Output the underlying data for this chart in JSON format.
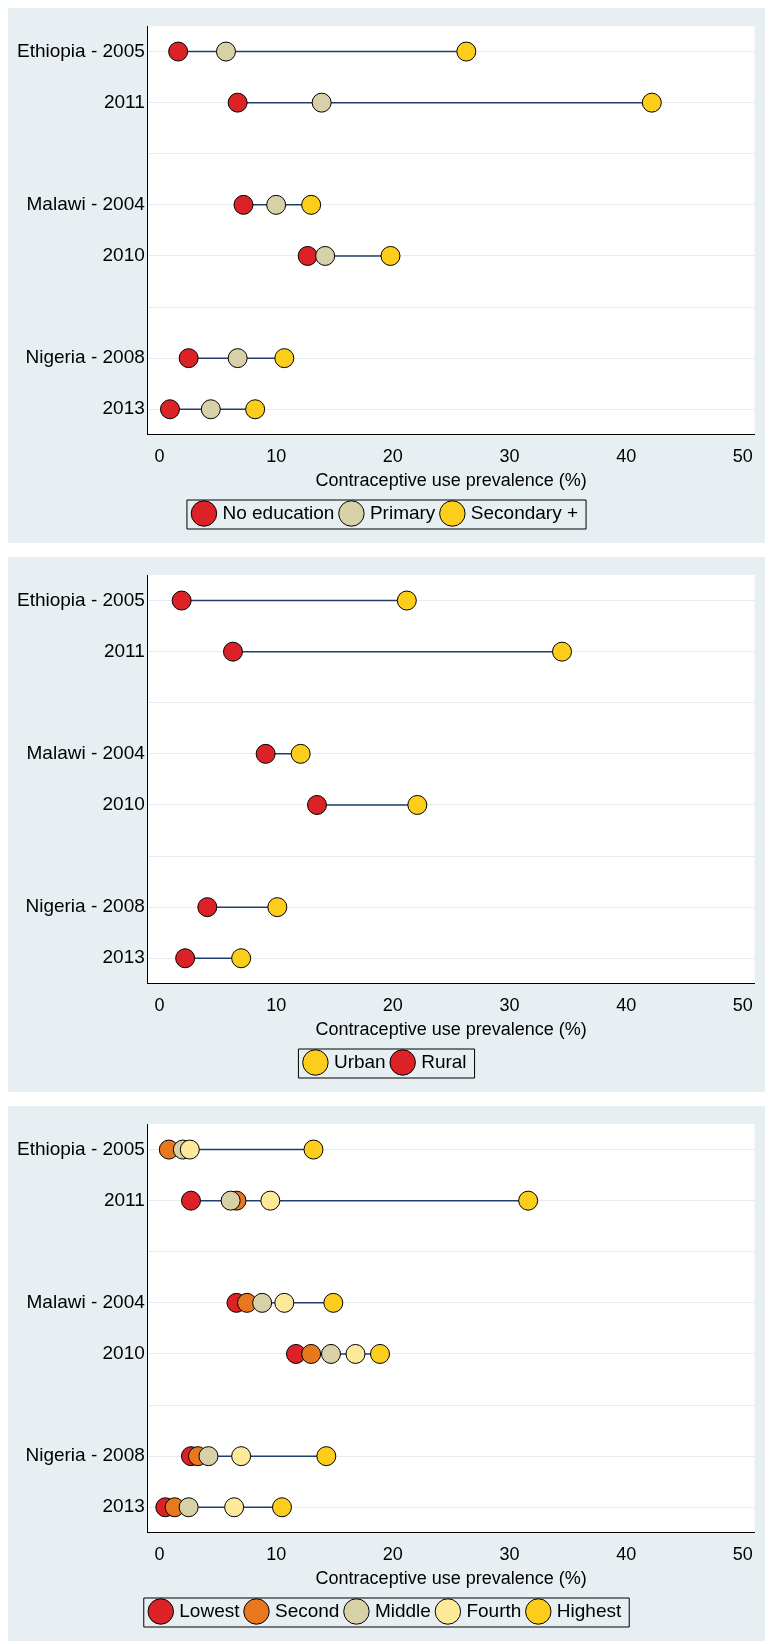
{
  "chart_data": [
    {
      "type": "scatter",
      "orientation": "horizontal",
      "categories": [
        "Ethiopia - 2005",
        "2011",
        null,
        "Malawi - 2004",
        "2010",
        null,
        "Nigeria - 2008",
        "2013"
      ],
      "xlabel": "Contraceptive use prevalence (%)",
      "xlim": [
        -1,
        51
      ],
      "xticks": [
        0,
        10,
        20,
        30,
        40,
        50
      ],
      "grid": "y",
      "legend": "bottom",
      "marker": "circle",
      "series": [
        {
          "name": "No education",
          "color": "#dc2127",
          "values": [
            1.6,
            6.7,
            null,
            7.2,
            12.7,
            null,
            2.5,
            0.9
          ]
        },
        {
          "name": "Primary",
          "color": "#d8d0a6",
          "values": [
            5.7,
            13.9,
            null,
            10.0,
            14.2,
            null,
            6.7,
            4.4
          ]
        },
        {
          "name": "Secondary +",
          "color": "#fdcd1b",
          "values": [
            26.3,
            42.2,
            null,
            13.0,
            19.8,
            null,
            10.7,
            8.2
          ]
        }
      ]
    },
    {
      "type": "scatter",
      "orientation": "horizontal",
      "categories": [
        "Ethiopia - 2005",
        "2011",
        null,
        "Malawi - 2004",
        "2010",
        null,
        "Nigeria - 2008",
        "2013"
      ],
      "xlabel": "Contraceptive use prevalence (%)",
      "xlim": [
        -1,
        51
      ],
      "xticks": [
        0,
        10,
        20,
        30,
        40,
        50
      ],
      "grid": "y",
      "legend": "bottom",
      "marker": "circle",
      "series": [
        {
          "name": "Urban",
          "color": "#fdcd1b",
          "values": [
            21.2,
            34.5,
            null,
            12.1,
            22.1,
            null,
            10.1,
            7.0
          ]
        },
        {
          "name": "Rural",
          "color": "#dc2127",
          "values": [
            1.9,
            6.3,
            null,
            9.1,
            13.5,
            null,
            4.1,
            2.2
          ]
        }
      ]
    },
    {
      "type": "scatter",
      "orientation": "horizontal",
      "categories": [
        "Ethiopia - 2005",
        "2011",
        null,
        "Malawi - 2004",
        "2010",
        null,
        "Nigeria - 2008",
        "2013"
      ],
      "xlabel": "Contraceptive use prevalence (%)",
      "xlim": [
        -1,
        51
      ],
      "xticks": [
        0,
        10,
        20,
        30,
        40,
        50
      ],
      "grid": "y",
      "legend": "bottom",
      "marker": "circle",
      "series": [
        {
          "name": "Lowest",
          "color": "#dc2127",
          "values": [
            null,
            2.7,
            null,
            6.6,
            11.7,
            null,
            2.7,
            0.5
          ]
        },
        {
          "name": "Second",
          "color": "#e8781e",
          "values": [
            0.8,
            6.6,
            null,
            7.5,
            13.0,
            null,
            3.3,
            1.3
          ]
        },
        {
          "name": "Middle",
          "color": "#d8d0a6",
          "values": [
            2.0,
            6.1,
            null,
            8.8,
            14.7,
            null,
            4.2,
            2.5
          ]
        },
        {
          "name": "Fourth",
          "color": "#fde99a",
          "values": [
            2.6,
            9.5,
            null,
            10.7,
            16.8,
            null,
            7.0,
            6.4
          ]
        },
        {
          "name": "Highest",
          "color": "#fdcd1b",
          "values": [
            13.2,
            31.6,
            null,
            14.9,
            18.9,
            null,
            14.3,
            10.5
          ]
        }
      ]
    }
  ]
}
